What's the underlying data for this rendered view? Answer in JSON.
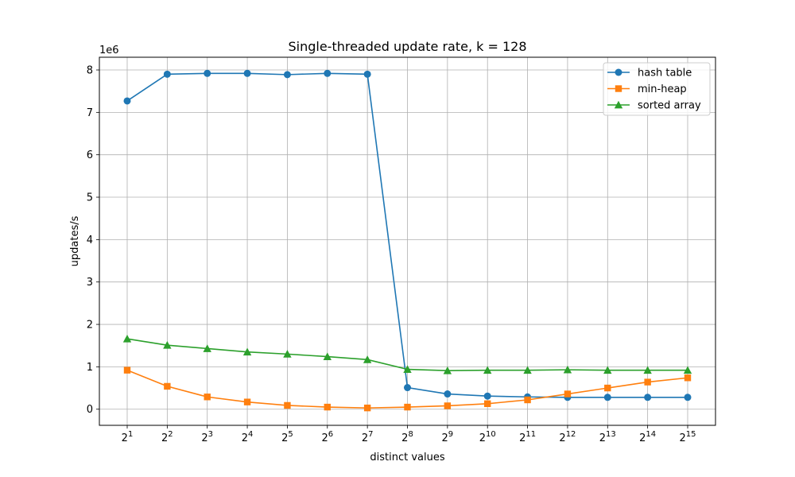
{
  "chart_data": {
    "type": "line",
    "title": "Single-threaded update rate, k = 128",
    "xlabel": "distinct values",
    "ylabel": "updates/s",
    "y_offset_label": "1e6",
    "y_scale": 1000000,
    "x_scale": "log2",
    "x_tick_base": "2",
    "x_exponents": [
      1,
      2,
      3,
      4,
      5,
      6,
      7,
      8,
      9,
      10,
      11,
      12,
      13,
      14,
      15
    ],
    "x": [
      2,
      4,
      8,
      16,
      32,
      64,
      128,
      256,
      512,
      1024,
      2048,
      4096,
      8192,
      16384,
      32768
    ],
    "ylim": [
      -0.38,
      8.3
    ],
    "y_ticks": [
      0,
      1,
      2,
      3,
      4,
      5,
      6,
      7,
      8
    ],
    "grid": true,
    "legend_position": "top-right",
    "series": [
      {
        "name": "hash table",
        "color": "#1f77b4",
        "marker": "circle",
        "values": [
          7.27,
          7.9,
          7.92,
          7.92,
          7.89,
          7.92,
          7.9,
          0.51,
          0.36,
          0.31,
          0.29,
          0.28,
          0.28,
          0.28,
          0.28
        ]
      },
      {
        "name": "min-heap",
        "color": "#ff7f0e",
        "marker": "square",
        "values": [
          0.92,
          0.54,
          0.29,
          0.17,
          0.09,
          0.05,
          0.03,
          0.05,
          0.08,
          0.13,
          0.22,
          0.36,
          0.5,
          0.64,
          0.74
        ]
      },
      {
        "name": "sorted array",
        "color": "#2ca02c",
        "marker": "triangle",
        "values": [
          1.66,
          1.51,
          1.43,
          1.35,
          1.3,
          1.24,
          1.17,
          0.94,
          0.91,
          0.92,
          0.92,
          0.93,
          0.92,
          0.92,
          0.92
        ]
      }
    ]
  }
}
